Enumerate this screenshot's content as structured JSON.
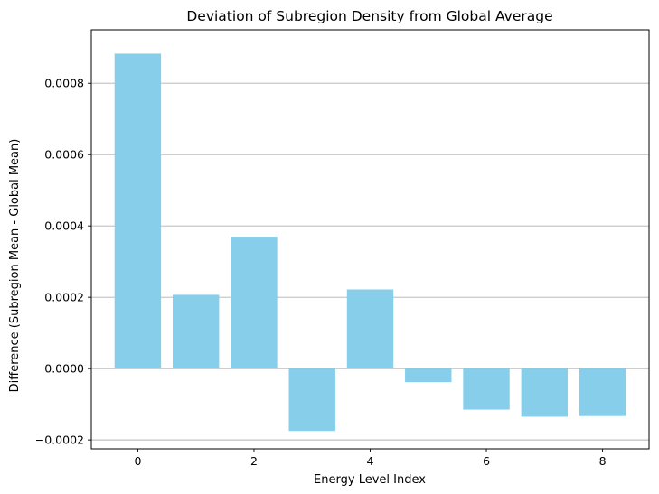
{
  "chart_data": {
    "type": "bar",
    "title": "Deviation of Subregion Density from Global Average",
    "xlabel": "Energy Level Index",
    "ylabel": "Difference (Subregion Mean - Global Mean)",
    "categories": [
      0,
      1,
      2,
      3,
      4,
      5,
      6,
      7,
      8
    ],
    "values": [
      0.000883,
      0.000207,
      0.00037,
      -0.000175,
      0.000222,
      -3.8e-05,
      -0.000115,
      -0.000135,
      -0.000133
    ],
    "bar_color": "#87ceeb",
    "xlim": [
      -0.8,
      8.8
    ],
    "ylim": [
      -0.000225,
      0.00095
    ],
    "xticks": [
      0,
      2,
      4,
      6,
      8
    ],
    "xtick_labels": [
      "0",
      "2",
      "4",
      "6",
      "8"
    ],
    "yticks": [
      -0.0002,
      0.0,
      0.0002,
      0.0004,
      0.0006,
      0.0008
    ],
    "ytick_labels": [
      "−0.0002",
      "0.0000",
      "0.0002",
      "0.0004",
      "0.0006",
      "0.0008"
    ],
    "grid": "y-axis",
    "grid_color": "#b0b0b0",
    "legend": "none"
  }
}
